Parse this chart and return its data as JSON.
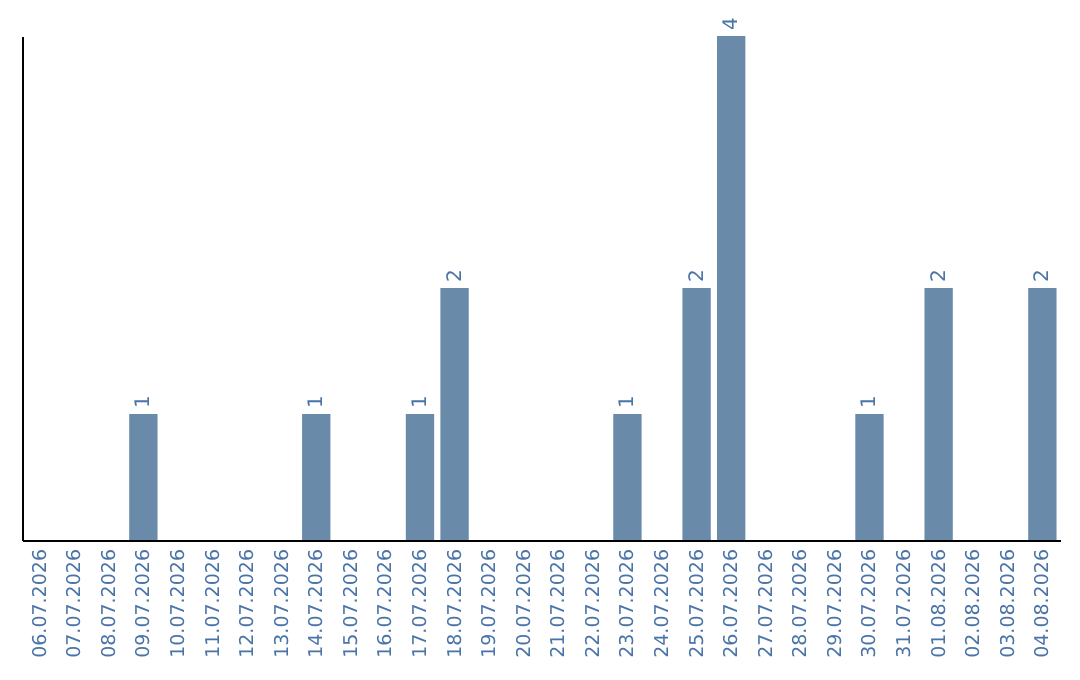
{
  "chart_data": {
    "type": "bar",
    "categories": [
      "06.07.2026",
      "07.07.2026",
      "08.07.2026",
      "09.07.2026",
      "10.07.2026",
      "11.07.2026",
      "12.07.2026",
      "13.07.2026",
      "14.07.2026",
      "15.07.2026",
      "16.07.2026",
      "17.07.2026",
      "18.07.2026",
      "19.07.2026",
      "20.07.2026",
      "21.07.2026",
      "22.07.2026",
      "23.07.2026",
      "24.07.2026",
      "25.07.2026",
      "26.07.2026",
      "27.07.2026",
      "28.07.2026",
      "29.07.2026",
      "30.07.2026",
      "31.07.2026",
      "01.08.2026",
      "02.08.2026",
      "03.08.2026",
      "04.08.2026"
    ],
    "values": [
      0,
      0,
      0,
      1,
      0,
      0,
      0,
      0,
      1,
      0,
      0,
      1,
      2,
      0,
      0,
      0,
      0,
      1,
      0,
      2,
      4,
      0,
      0,
      0,
      1,
      0,
      2,
      0,
      0,
      2
    ],
    "value_labels": [
      null,
      null,
      null,
      "1",
      null,
      null,
      null,
      null,
      "1",
      null,
      null,
      "1",
      "2",
      null,
      null,
      null,
      null,
      "1",
      null,
      "2",
      "4",
      null,
      null,
      null,
      "1",
      null,
      "2",
      null,
      null,
      "2"
    ],
    "color": "#6a8aaa",
    "tick_labels": "x"
  }
}
